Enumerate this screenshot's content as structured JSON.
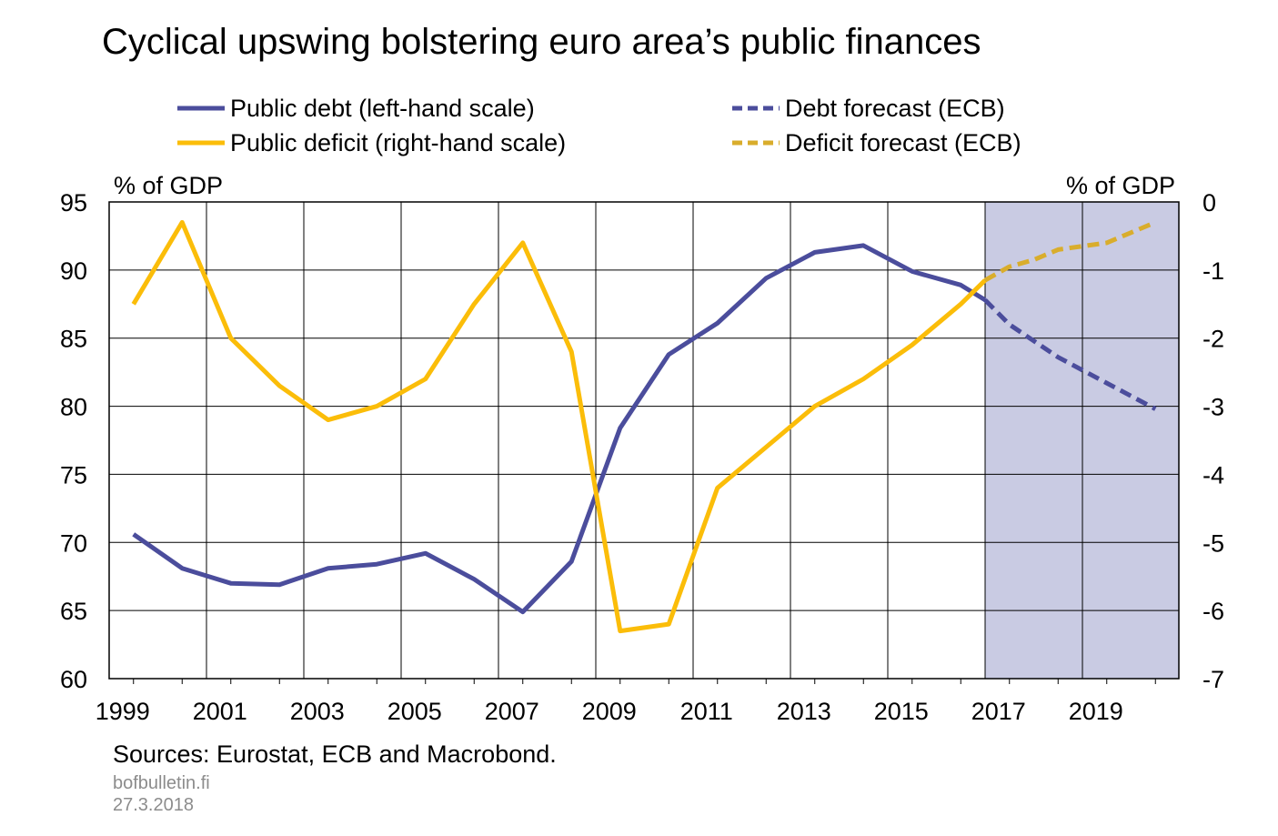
{
  "title": "Cyclical upswing bolstering euro area’s public finances",
  "source": "Sources: Eurostat, ECB and Macrobond.",
  "site": "bofbulletin.fi",
  "date": "27.3.2018",
  "colors": {
    "debt": "#4b4d9c",
    "deficit": "#fbbd09",
    "deficit_forecast": "#d9ad2c",
    "forecast_bg": "#c9cbe3"
  },
  "chart_data": {
    "type": "line",
    "left_axis": {
      "label": "% of GDP",
      "ylim": [
        60,
        95
      ],
      "ticks": [
        "60",
        "65",
        "70",
        "75",
        "80",
        "85",
        "90",
        "95"
      ]
    },
    "right_axis": {
      "label": "% of GDP",
      "ylim": [
        -7,
        0
      ],
      "ticks": [
        "-7",
        "-6",
        "-5",
        "-4",
        "-3",
        "-2",
        "-1",
        "0"
      ]
    },
    "x_ticks": [
      "1999",
      "2001",
      "2003",
      "2005",
      "2007",
      "2009",
      "2011",
      "2013",
      "2015",
      "2017",
      "2019"
    ],
    "xlim": [
      1999,
      2020
    ],
    "forecast_shaded_from": 2017,
    "grid": true,
    "series": [
      {
        "name": "Public debt (left-hand scale)",
        "axis": "left",
        "style": "solid",
        "x": [
          1999,
          2000,
          2001,
          2002,
          2003,
          2004,
          2005,
          2006,
          2007,
          2008,
          2009,
          2010,
          2011,
          2012,
          2013,
          2014,
          2015,
          2016,
          2016.5
        ],
        "y": [
          70.6,
          68.1,
          67.0,
          66.9,
          68.1,
          68.4,
          69.2,
          67.3,
          64.9,
          68.6,
          78.4,
          83.8,
          86.1,
          89.4,
          91.3,
          91.8,
          89.9,
          88.9,
          87.8
        ]
      },
      {
        "name": "Debt forecast (ECB)",
        "axis": "left",
        "style": "dashed",
        "x": [
          2016.5,
          2017,
          2018,
          2019,
          2020
        ],
        "y": [
          87.8,
          86.0,
          83.6,
          81.7,
          79.8
        ]
      },
      {
        "name": "Public deficit (right-hand scale)",
        "axis": "right",
        "style": "solid",
        "x": [
          1999,
          2000,
          2001,
          2002,
          2003,
          2004,
          2005,
          2006,
          2007,
          2008,
          2009,
          2010,
          2011,
          2012,
          2013,
          2014,
          2015,
          2016,
          2016.5
        ],
        "y": [
          -1.5,
          -0.3,
          -2.0,
          -2.7,
          -3.2,
          -3.0,
          -2.6,
          -1.5,
          -0.6,
          -2.2,
          -6.3,
          -6.2,
          -4.2,
          -3.6,
          -3.0,
          -2.6,
          -2.1,
          -1.5,
          -1.15
        ]
      },
      {
        "name": "Deficit forecast (ECB)",
        "axis": "right",
        "style": "dashed",
        "x": [
          2016.5,
          2017,
          2017.5,
          2018,
          2018.5,
          2019,
          2019.5,
          2020
        ],
        "y": [
          -1.15,
          -0.95,
          -0.85,
          -0.7,
          -0.65,
          -0.6,
          -0.45,
          -0.3
        ]
      }
    ]
  }
}
